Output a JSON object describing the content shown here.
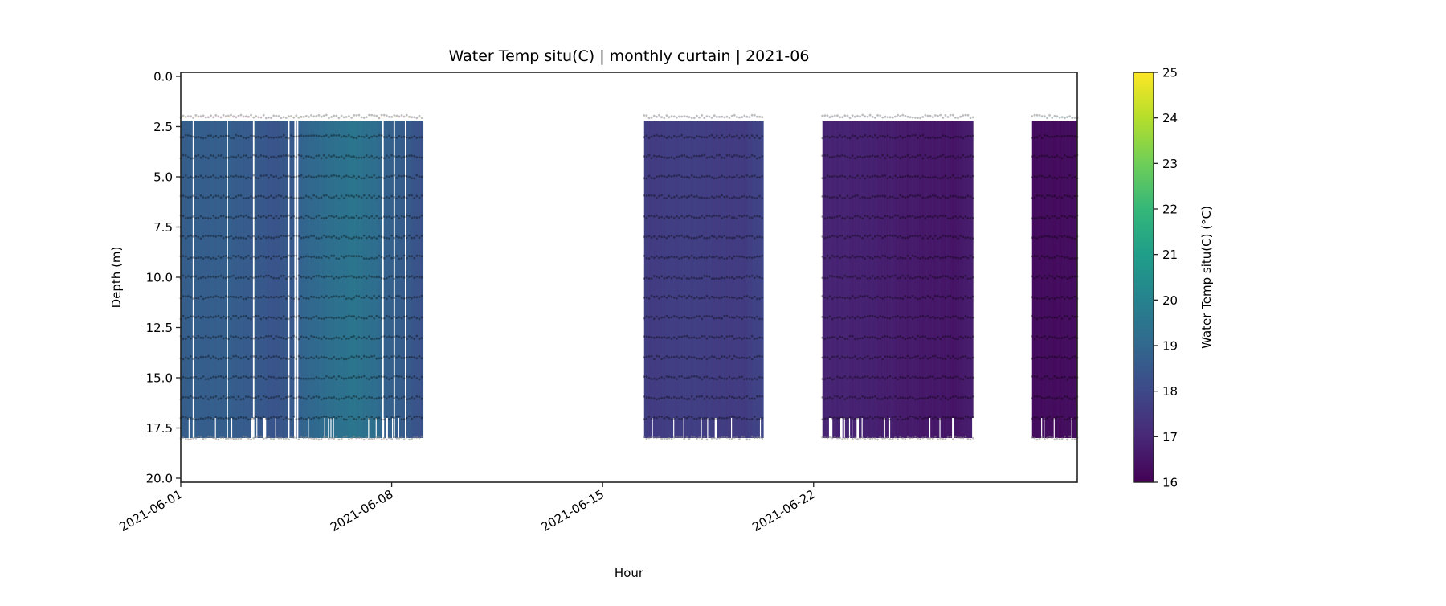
{
  "chart_data": {
    "type": "heatmap",
    "title": "Water Temp situ(C) | monthly curtain | 2021-06",
    "xlabel": "Hour",
    "ylabel": "Depth (m)",
    "xlim": [
      "2021-06-01T00:00",
      "2021-06-30T18:00"
    ],
    "ylim": [
      20.2,
      -0.2
    ],
    "y_inverted": true,
    "x_tick_labels": [
      "2021-06-01",
      "2021-06-08",
      "2021-06-15",
      "2021-06-22"
    ],
    "y_ticks": [
      0.0,
      2.5,
      5.0,
      7.5,
      10.0,
      12.5,
      15.0,
      17.5,
      20.0
    ],
    "y_tick_labels": [
      "0.0",
      "2.5",
      "5.0",
      "7.5",
      "10.0",
      "12.5",
      "15.0",
      "17.5",
      "20.0"
    ],
    "grid": false,
    "colormap": "viridis",
    "colorbar": {
      "label": "Water Temp situ(C) (°C)",
      "range": [
        16,
        25
      ],
      "ticks": [
        16,
        17,
        18,
        19,
        20,
        21,
        22,
        23,
        24,
        25
      ],
      "tick_labels": [
        "16",
        "17",
        "18",
        "19",
        "20",
        "21",
        "22",
        "23",
        "24",
        "25"
      ],
      "placement": "right"
    },
    "sensor_depths": [
      2,
      3,
      4,
      5,
      6,
      7,
      8,
      9,
      10,
      11,
      12,
      13,
      14,
      15,
      16,
      17,
      18
    ],
    "depth_range": [
      2.0,
      18.0
    ],
    "segments": [
      {
        "start": "2021-06-01T00:00",
        "end": "2021-06-09T01:00",
        "temperature": [
          [
            "2021-06-01T00:00",
            18.7
          ],
          [
            "2021-06-02T12:00",
            18.7
          ],
          [
            "2021-06-03T10:00",
            18.6
          ],
          [
            "2021-06-04T00:00",
            18.4
          ],
          [
            "2021-06-04T20:00",
            18.5
          ],
          [
            "2021-06-05T00:00",
            18.9
          ],
          [
            "2021-06-06T00:00",
            19.3
          ],
          [
            "2021-06-06T18:00",
            19.5
          ],
          [
            "2021-06-07T12:00",
            19.2
          ],
          [
            "2021-06-07T18:00",
            18.8
          ],
          [
            "2021-06-08T12:00",
            18.6
          ],
          [
            "2021-06-09T01:00",
            18.2
          ]
        ],
        "gaps": [
          "2021-06-01T10:00",
          "2021-06-02T13:00",
          "2021-06-03T10:00",
          "2021-06-04T14:00",
          "2021-06-04T19:00",
          "2021-06-04T21:00",
          "2021-06-07T17:00",
          "2021-06-08T02:00",
          "2021-06-08T11:00"
        ]
      },
      {
        "start": "2021-06-16T09:00",
        "end": "2021-06-20T08:00",
        "temperature": [
          [
            "2021-06-16T09:00",
            17.6
          ],
          [
            "2021-06-18T00:00",
            17.7
          ],
          [
            "2021-06-19T00:00",
            17.6
          ],
          [
            "2021-06-19T18:00",
            17.6
          ],
          [
            "2021-06-20T08:00",
            18.0
          ]
        ],
        "gaps": []
      },
      {
        "start": "2021-06-22T07:00",
        "end": "2021-06-27T07:00",
        "temperature": [
          [
            "2021-06-22T07:00",
            16.9
          ],
          [
            "2021-06-24T00:00",
            16.8
          ],
          [
            "2021-06-25T12:00",
            16.6
          ],
          [
            "2021-06-26T18:00",
            16.5
          ],
          [
            "2021-06-27T07:00",
            16.8
          ]
        ],
        "gaps": []
      },
      {
        "start": "2021-06-29T06:00",
        "end": "2021-06-30T18:00",
        "temperature": [
          [
            "2021-06-29T06:00",
            16.3
          ],
          [
            "2021-06-30T18:00",
            16.3
          ]
        ],
        "gaps": []
      }
    ],
    "colors": {
      "viridis": [
        "#440154",
        "#482878",
        "#3e4989",
        "#31688e",
        "#26828e",
        "#1f9e89",
        "#35b779",
        "#6ece58",
        "#b5de2b",
        "#fde725"
      ],
      "sensor_points": "#000000",
      "edge_sensor_points": "#888888",
      "axes": "#222222"
    }
  }
}
